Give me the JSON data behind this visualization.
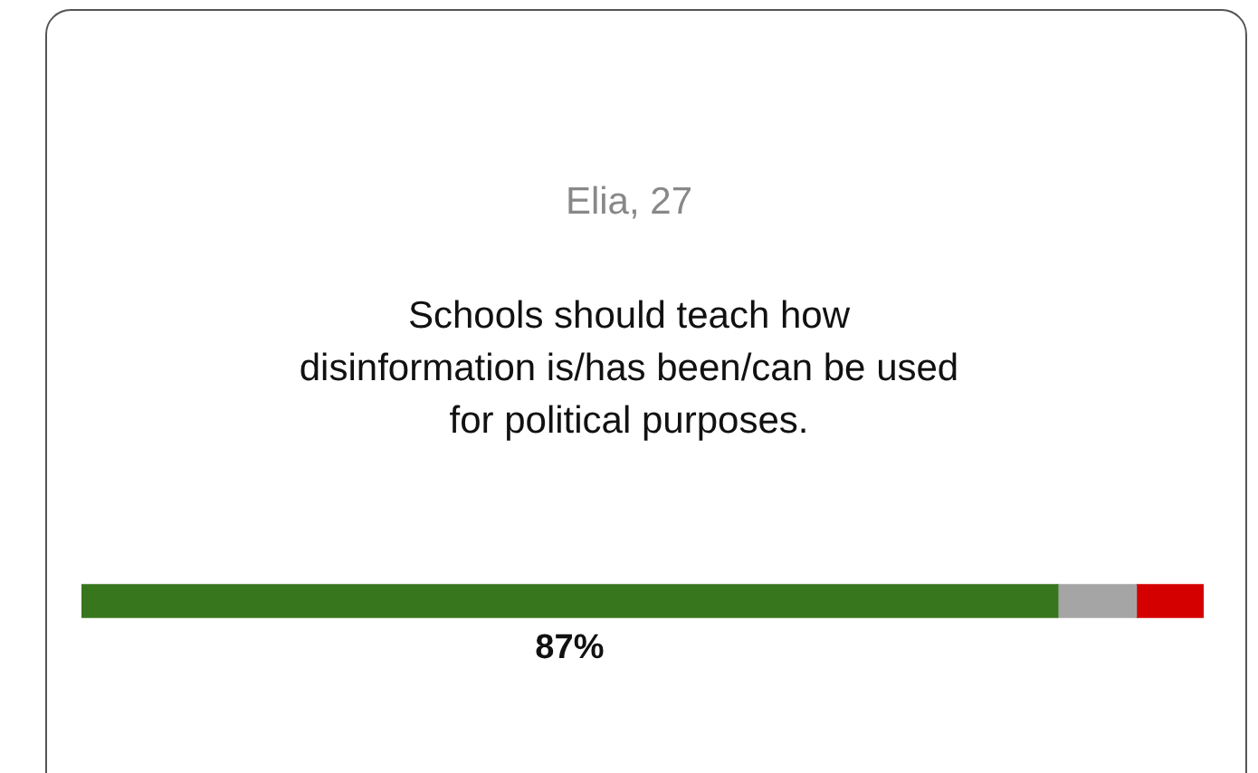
{
  "chart_data": {
    "type": "bar",
    "orientation": "horizontal",
    "stacked": true,
    "title": "Elia, 27",
    "subtitle": "Schools should teach how\ndisinformation is/has been/can be used\nfor political purposes.",
    "categories": [
      null
    ],
    "series": [
      {
        "color": "#38761d",
        "values": [
          87
        ],
        "value_labels": [
          "87%"
        ]
      },
      {
        "color": "#a5a5a5",
        "values": [
          7
        ],
        "value_labels": [
          null
        ]
      },
      {
        "color": "#d40000",
        "values": [
          6
        ],
        "value_labels": [
          null
        ]
      }
    ],
    "xlim": [
      0,
      100
    ],
    "tick_labels": false
  }
}
